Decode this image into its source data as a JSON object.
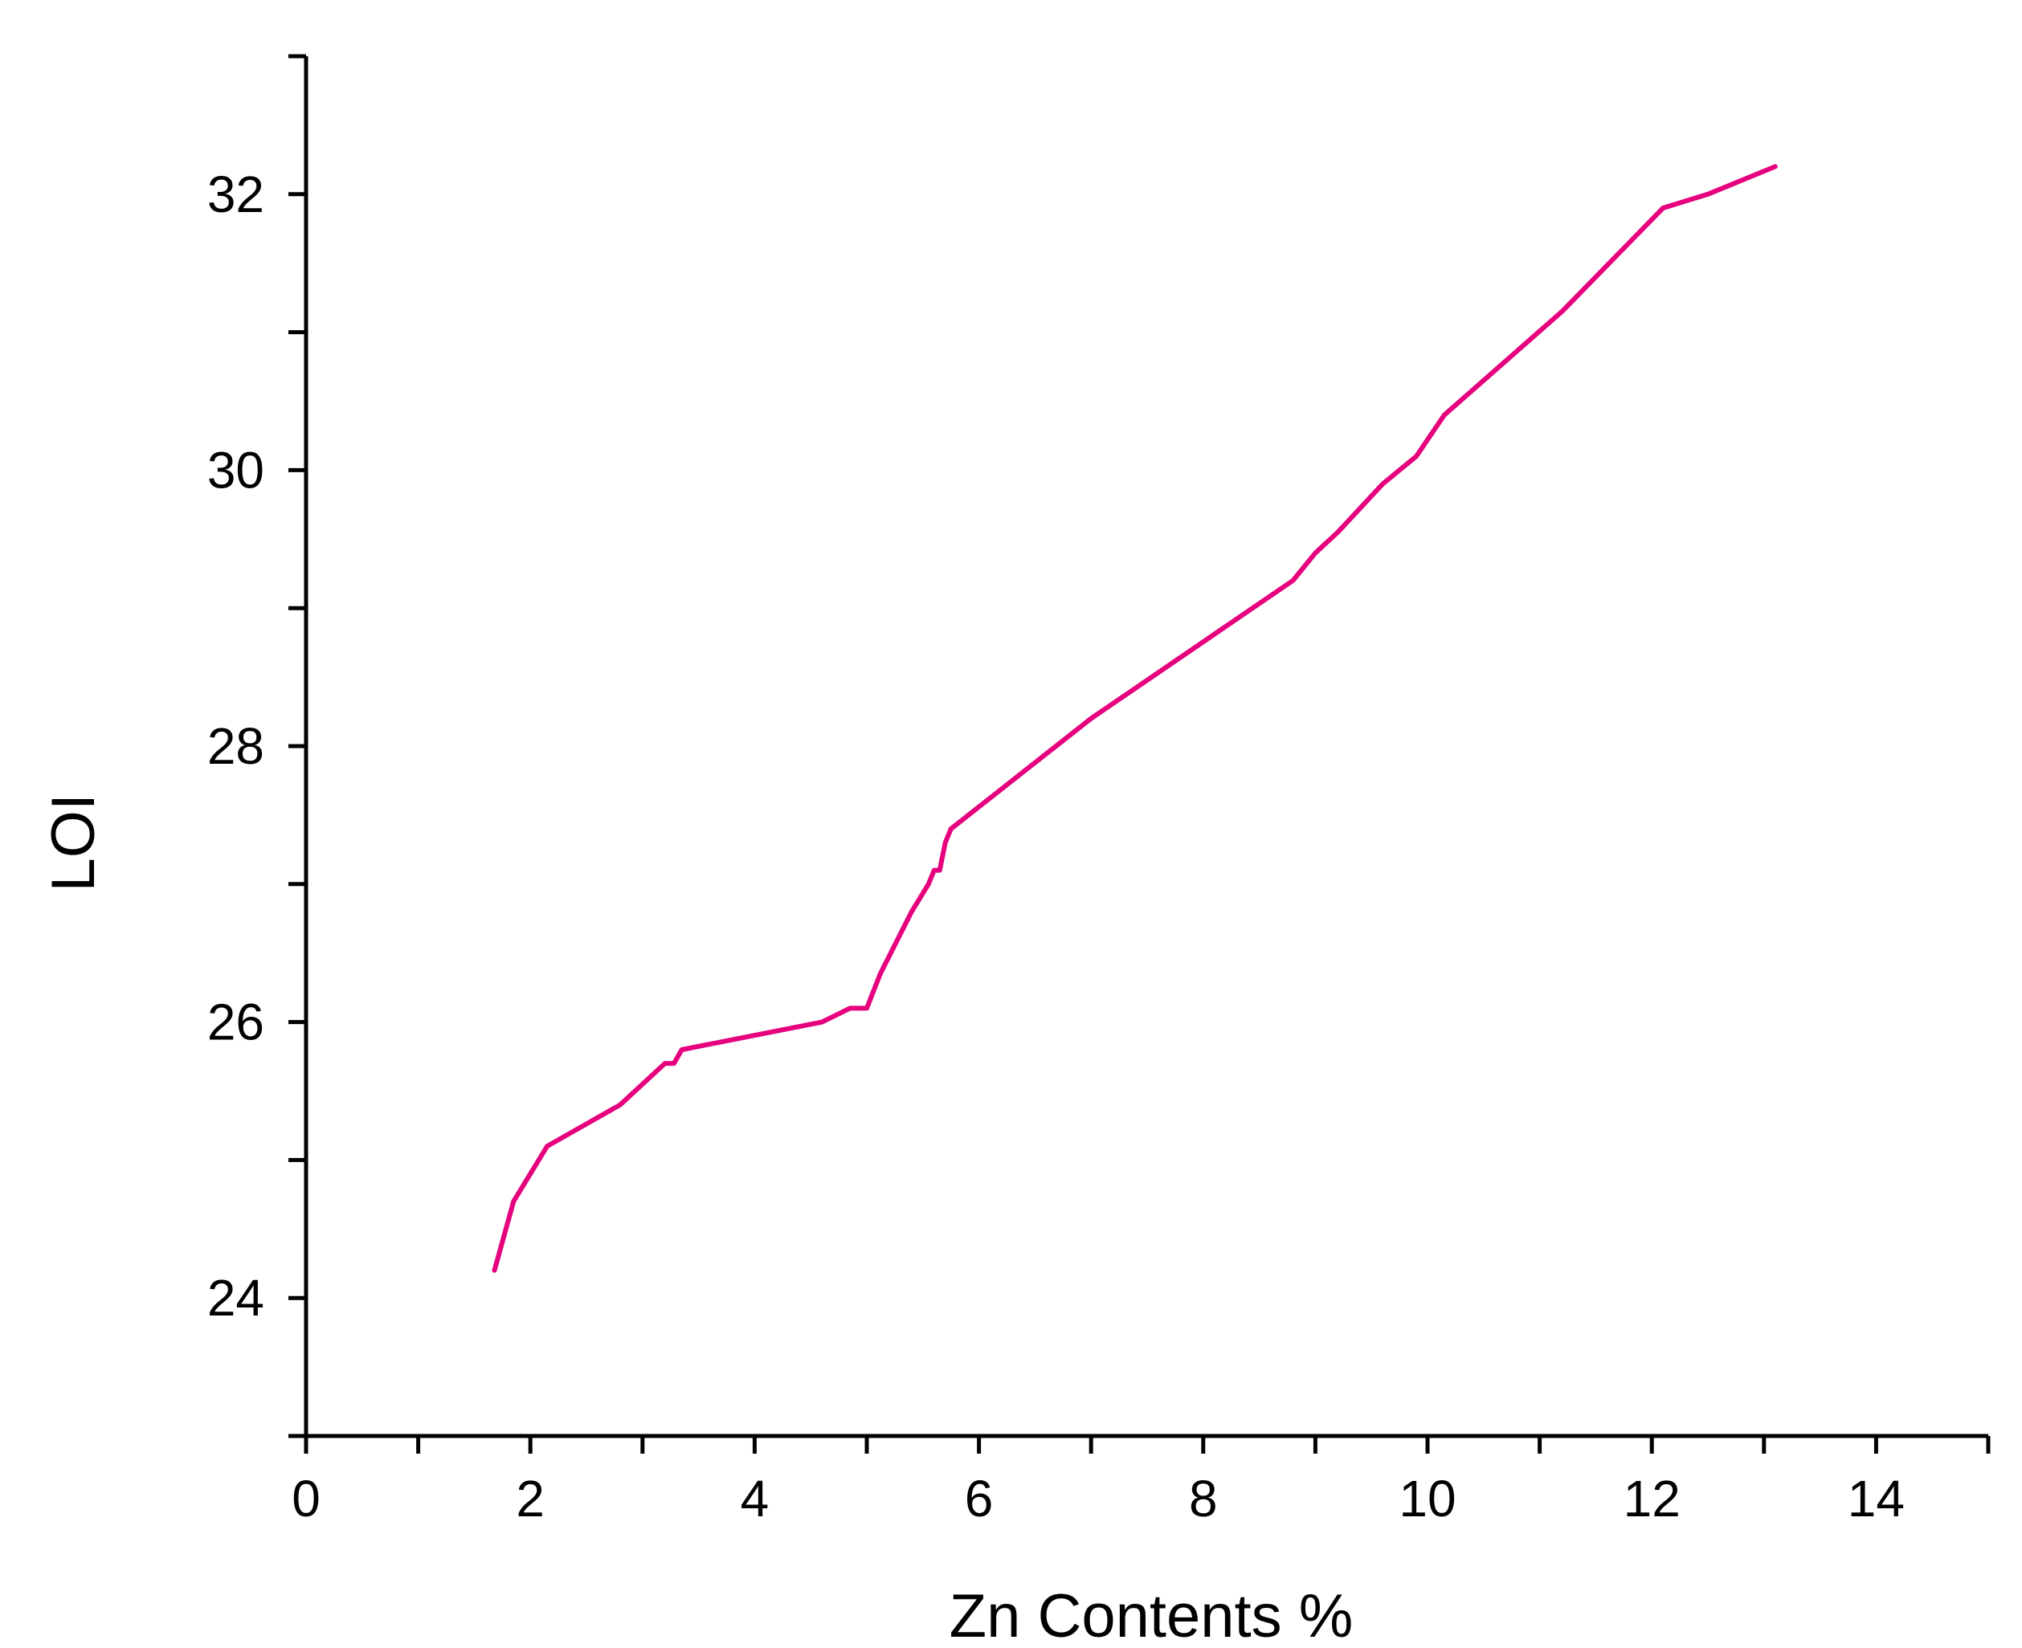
{
  "chart_data": {
    "type": "line",
    "title": "",
    "xlabel": "Zn Contents %",
    "ylabel": "LOI",
    "xlim": [
      0,
      15
    ],
    "ylim": [
      23,
      33
    ],
    "x_ticks": [
      0,
      2,
      4,
      6,
      8,
      10,
      12,
      14
    ],
    "x_tick_labels": [
      "0",
      "2",
      "4",
      "6",
      "8",
      "10",
      "12",
      "14"
    ],
    "x_minor_ticks": [
      1,
      3,
      5,
      7,
      9,
      11,
      13,
      15
    ],
    "y_ticks": [
      24,
      26,
      28,
      30,
      32
    ],
    "y_tick_labels": [
      "24",
      "26",
      "28",
      "30",
      "32"
    ],
    "y_minor_ticks": [
      23,
      25,
      27,
      29,
      31,
      33
    ],
    "grid": false,
    "legend": "none",
    "series": [
      {
        "color": "#e6007e",
        "x": [
          1.68,
          1.85,
          2.15,
          2.8,
          3.0,
          3.2,
          3.28,
          3.35,
          4.6,
          4.85,
          5.0,
          5.12,
          5.4,
          5.55,
          5.6,
          5.65,
          5.7,
          5.75,
          7.0,
          8.8,
          9.0,
          9.2,
          9.6,
          9.9,
          10.15,
          11.2,
          12.1,
          12.5,
          13.1
        ],
        "y": [
          24.2,
          24.7,
          25.1,
          25.4,
          25.55,
          25.7,
          25.7,
          25.8,
          26.0,
          26.1,
          26.1,
          26.35,
          26.8,
          27.0,
          27.1,
          27.1,
          27.3,
          27.4,
          28.2,
          29.2,
          29.4,
          29.55,
          29.9,
          30.1,
          30.4,
          31.15,
          31.9,
          32.0,
          32.2
        ]
      }
    ]
  }
}
